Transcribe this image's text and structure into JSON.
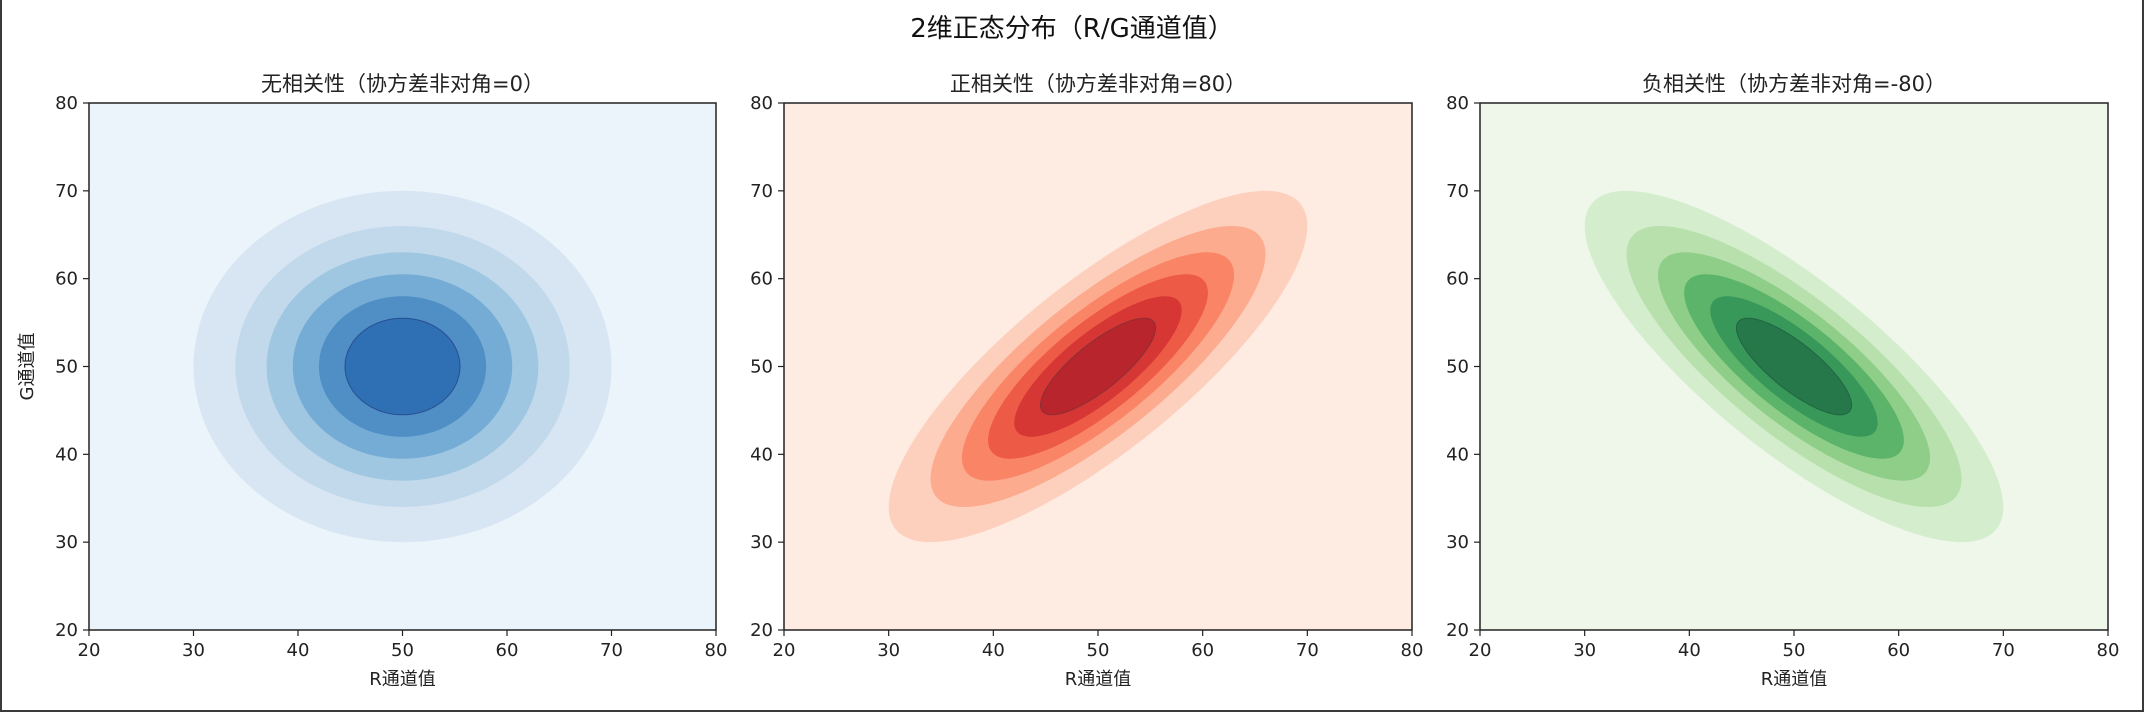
{
  "figure": {
    "suptitle": "2维正态分布（R/G通道值）"
  },
  "chart_data": [
    {
      "type": "contour",
      "title": "无相关性（协方差非对角=0）",
      "xlabel": "R通道值",
      "ylabel": "G通道值",
      "xlim": [
        20,
        80
      ],
      "ylim": [
        20,
        80
      ],
      "xticks": [
        20,
        30,
        40,
        50,
        60,
        70,
        80
      ],
      "yticks": [
        20,
        30,
        40,
        50,
        60,
        70,
        80
      ],
      "mean": [
        50,
        50
      ],
      "covariance": [
        [
          100,
          0
        ],
        [
          0,
          100
        ]
      ],
      "colormap": "Blues",
      "colors": [
        "#ebf3fb",
        "#d8e6f4",
        "#c2d9ec",
        "#9fc7e1",
        "#75acd5",
        "#4f8fc6",
        "#2f6fb4",
        "#294f91"
      ]
    },
    {
      "type": "contour",
      "title": "正相关性（协方差非对角=80）",
      "xlabel": "R通道值",
      "ylabel": "",
      "xlim": [
        20,
        80
      ],
      "ylim": [
        20,
        80
      ],
      "xticks": [
        20,
        30,
        40,
        50,
        60,
        70,
        80
      ],
      "yticks": [
        20,
        30,
        40,
        50,
        60,
        70,
        80
      ],
      "mean": [
        50,
        50
      ],
      "covariance": [
        [
          100,
          80
        ],
        [
          80,
          100
        ]
      ],
      "colormap": "Reds",
      "colors": [
        "#feebe2",
        "#fdd0bd",
        "#fcab8f",
        "#fa8466",
        "#ed5a46",
        "#d63735",
        "#b8252c",
        "#8c2f34"
      ]
    },
    {
      "type": "contour",
      "title": "负相关性（协方差非对角=-80）",
      "xlabel": "R通道值",
      "ylabel": "",
      "xlim": [
        20,
        80
      ],
      "ylim": [
        20,
        80
      ],
      "xticks": [
        20,
        30,
        40,
        50,
        60,
        70,
        80
      ],
      "yticks": [
        20,
        30,
        40,
        50,
        60,
        70,
        80
      ],
      "mean": [
        50,
        50
      ],
      "covariance": [
        [
          100,
          -80
        ],
        [
          -80,
          100
        ]
      ],
      "colormap": "Greens",
      "colors": [
        "#eef7ea",
        "#d4eecd",
        "#b7e0ad",
        "#8fce89",
        "#5cb46a",
        "#38985a",
        "#26774a",
        "#216540"
      ]
    }
  ]
}
